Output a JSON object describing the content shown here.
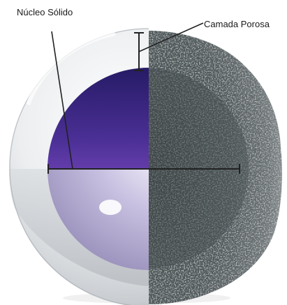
{
  "labels": {
    "core": "Núcleo Sólido",
    "shell": "Camada Porosa"
  },
  "colors": {
    "core_top": "#2a1f6e",
    "core_mid": "#6a3fb0",
    "core_glow": "#f2eefc",
    "shell_glass": "#e9ebee",
    "porous_dark": "#4a5254",
    "porous_light": "#8a9092",
    "indicator": "#222222"
  }
}
